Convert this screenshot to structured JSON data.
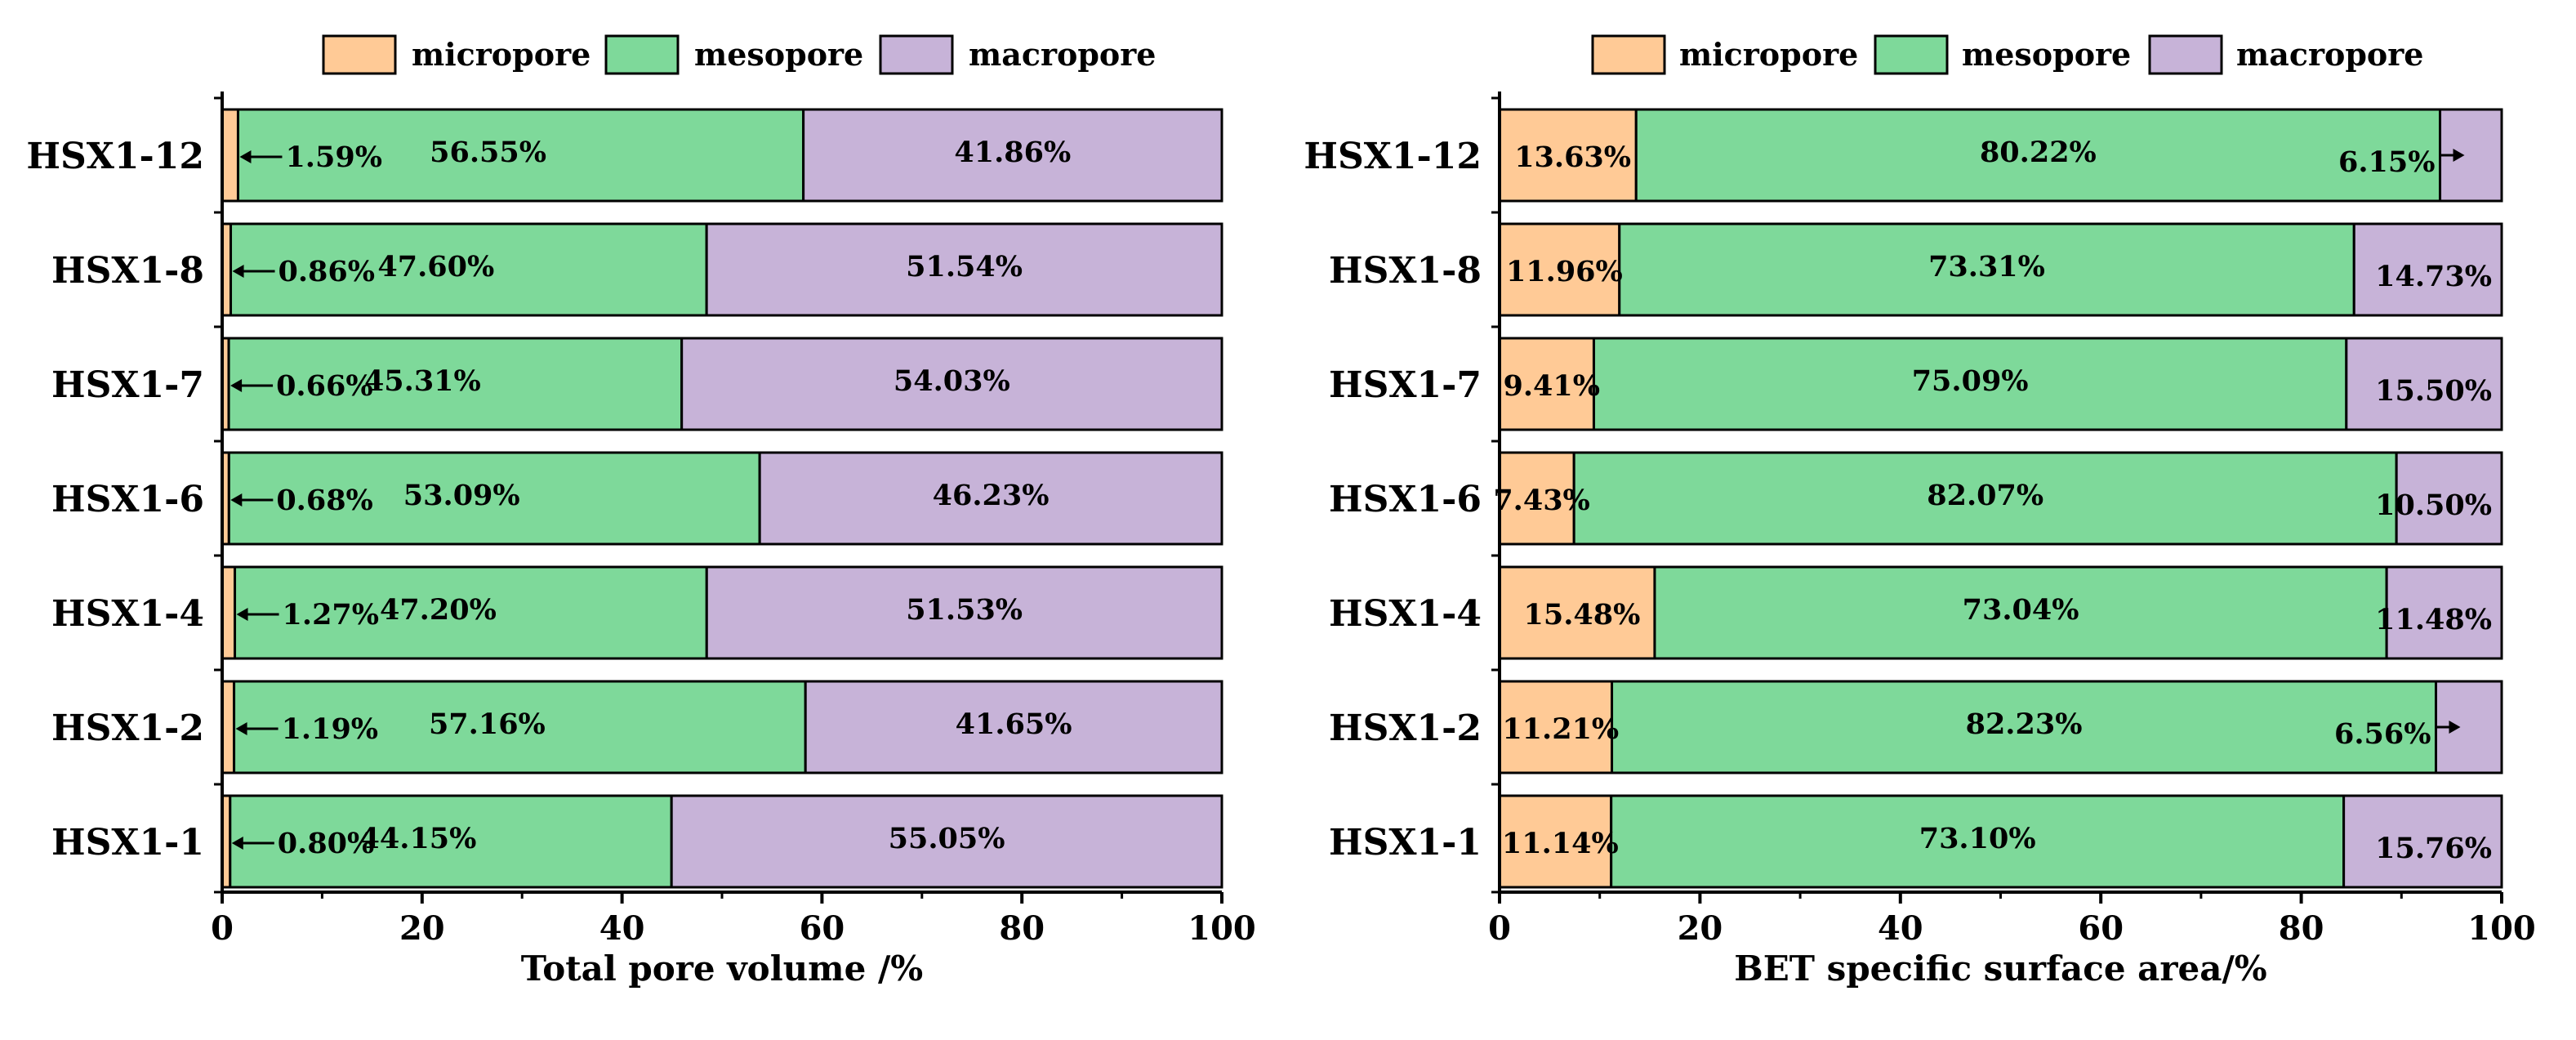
{
  "colors": {
    "micropore": "#FFCA96",
    "mesopore": "#7ED99A",
    "macropore": "#C7B3D8",
    "stroke": "#000000"
  },
  "chart_data": [
    {
      "type": "bar",
      "orientation": "horizontal",
      "stacked": true,
      "xlabel": "Total pore volume /%",
      "xlim": [
        0,
        100
      ],
      "xticks": [
        "0",
        "20",
        "40",
        "60",
        "80",
        "100"
      ],
      "legend": [
        "micropore",
        "mesopore",
        "macropore"
      ],
      "legend_position": "top",
      "categories": [
        "HSX1-12",
        "HSX1-8",
        "HSX1-7",
        "HSX1-6",
        "HSX1-4",
        "HSX1-2",
        "HSX1-1"
      ],
      "series": [
        {
          "name": "micropore",
          "values": [
            1.59,
            0.86,
            0.66,
            0.68,
            1.27,
            1.19,
            0.8
          ]
        },
        {
          "name": "mesopore",
          "values": [
            56.55,
            47.6,
            45.31,
            53.09,
            47.2,
            57.16,
            44.15
          ]
        },
        {
          "name": "macropore",
          "values": [
            41.86,
            51.54,
            54.03,
            46.23,
            51.53,
            41.65,
            55.05
          ]
        }
      ],
      "labels": [
        [
          "1.59%",
          "56.55%",
          "41.86%"
        ],
        [
          "0.86%",
          "47.60%",
          "51.54%"
        ],
        [
          "0.66%",
          "45.31%",
          "54.03%"
        ],
        [
          "0.68%",
          "53.09%",
          "46.23%"
        ],
        [
          "1.27%",
          "47.20%",
          "51.53%"
        ],
        [
          "1.19%",
          "57.16%",
          "41.65%"
        ],
        [
          "0.80%",
          "44.15%",
          "55.05%"
        ]
      ]
    },
    {
      "type": "bar",
      "orientation": "horizontal",
      "stacked": true,
      "xlabel": "BET specific surface area/%",
      "xlim": [
        0,
        100
      ],
      "xticks": [
        "0",
        "20",
        "40",
        "60",
        "80",
        "100"
      ],
      "legend": [
        "micropore",
        "mesopore",
        "macropore"
      ],
      "legend_position": "top",
      "categories": [
        "HSX1-12",
        "HSX1-8",
        "HSX1-7",
        "HSX1-6",
        "HSX1-4",
        "HSX1-2",
        "HSX1-1"
      ],
      "series": [
        {
          "name": "micropore",
          "values": [
            13.63,
            11.96,
            9.41,
            7.43,
            15.48,
            11.21,
            11.14
          ]
        },
        {
          "name": "mesopore",
          "values": [
            80.22,
            73.31,
            75.09,
            82.07,
            73.04,
            82.23,
            73.1
          ]
        },
        {
          "name": "macropore",
          "values": [
            6.15,
            14.73,
            15.5,
            10.5,
            11.48,
            6.56,
            15.76
          ]
        }
      ],
      "labels": [
        [
          "13.63%",
          "80.22%",
          "6.15%"
        ],
        [
          "11.96%",
          "73.31%",
          "14.73%"
        ],
        [
          "9.41%",
          "75.09%",
          "15.50%"
        ],
        [
          "7.43%",
          "82.07%",
          "10.50%"
        ],
        [
          "15.48%",
          "73.04%",
          "11.48%"
        ],
        [
          "11.21%",
          "82.23%",
          "6.56%"
        ],
        [
          "11.14%",
          "73.10%",
          "15.76%"
        ]
      ]
    }
  ]
}
